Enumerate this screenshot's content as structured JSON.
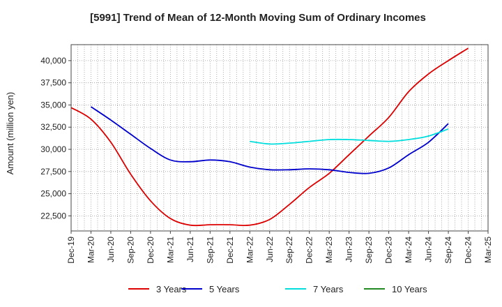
{
  "chart_data": {
    "type": "line",
    "title": "[5991]  Trend of Mean of 12-Month Moving Sum of Ordinary Incomes",
    "xlabel": "",
    "ylabel": "Amount (million yen)",
    "ylim": [
      20800,
      41800
    ],
    "y_ticks": [
      22500,
      25000,
      27500,
      30000,
      32500,
      35000,
      37500,
      40000
    ],
    "y_tick_labels": [
      "22,500",
      "25,000",
      "27,500",
      "30,000",
      "32,500",
      "35,000",
      "37,500",
      "40,000"
    ],
    "x_ticks": [
      "Dec-19",
      "Mar-20",
      "Jun-20",
      "Sep-20",
      "Dec-20",
      "Mar-21",
      "Jun-21",
      "Sep-21",
      "Dec-21",
      "Mar-22",
      "Jun-22",
      "Sep-22",
      "Dec-22",
      "Mar-23",
      "Jun-23",
      "Sep-23",
      "Dec-23",
      "Mar-24",
      "Jun-24",
      "Sep-24",
      "Dec-24",
      "Mar-25"
    ],
    "grid": true,
    "legend_position": "bottom",
    "series": [
      {
        "name": "3 Years",
        "color": "#dd0000",
        "start_quarter": 0,
        "values": [
          34700,
          33400,
          30800,
          27200,
          24200,
          22200,
          21450,
          21500,
          21500,
          21450,
          22100,
          23800,
          25700,
          27300,
          29400,
          31500,
          33600,
          36500,
          38500,
          40000,
          41400
        ]
      },
      {
        "name": "5 Years",
        "color": "#0000cc",
        "start_quarter": 1,
        "values": [
          34800,
          33300,
          31700,
          30100,
          28800,
          28600,
          28800,
          28600,
          28000,
          27700,
          27700,
          27800,
          27700,
          27400,
          27300,
          27900,
          29400,
          30800,
          32900
        ]
      },
      {
        "name": "7 Years",
        "color": "#00dddd",
        "start_quarter": 9,
        "values": [
          30900,
          30600,
          30700,
          30900,
          31100,
          31100,
          31000,
          30900,
          31100,
          31500,
          32300
        ]
      },
      {
        "name": "10 Years",
        "color": "#228822",
        "start_quarter": 0,
        "values": []
      }
    ]
  }
}
